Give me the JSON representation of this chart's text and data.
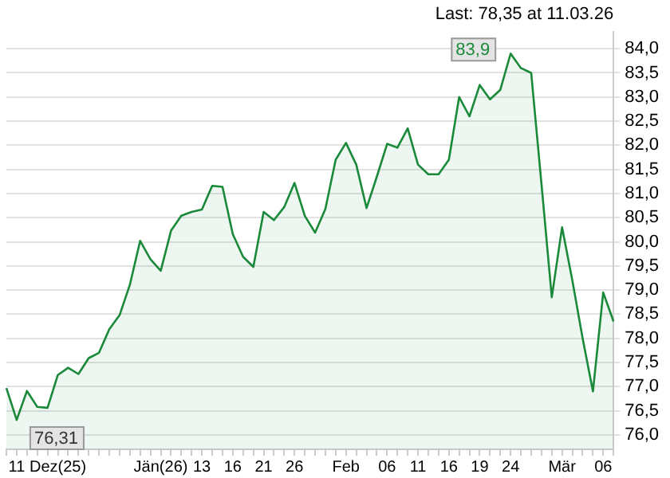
{
  "chart_data": {
    "type": "area",
    "categories": [
      null,
      "11",
      null,
      null,
      null,
      "Dez(25)",
      null,
      null,
      null,
      null,
      null,
      null,
      null,
      null,
      null,
      "Jän(26)",
      null,
      null,
      null,
      "13",
      null,
      null,
      "16",
      null,
      null,
      "21",
      null,
      null,
      "26",
      null,
      null,
      null,
      null,
      "Feb",
      null,
      null,
      null,
      "06",
      null,
      null,
      "11",
      null,
      null,
      "16",
      null,
      null,
      "19",
      null,
      null,
      "24",
      null,
      null,
      null,
      null,
      "Mär",
      null,
      null,
      null,
      "06",
      null
    ],
    "series": [
      {
        "color": "#1a8a3a",
        "values": [
          76.97,
          76.31,
          76.91,
          76.58,
          76.56,
          77.24,
          77.39,
          77.26,
          77.59,
          77.7,
          78.19,
          78.48,
          79.11,
          80.02,
          79.64,
          79.4,
          80.23,
          80.54,
          80.62,
          80.67,
          81.16,
          81.14,
          80.16,
          79.69,
          79.48,
          80.62,
          80.45,
          80.72,
          81.22,
          80.54,
          80.19,
          80.68,
          81.7,
          82.05,
          81.6,
          80.7,
          81.35,
          82.03,
          81.95,
          82.35,
          81.6,
          81.4,
          81.4,
          81.7,
          83.0,
          82.6,
          83.25,
          82.95,
          83.15,
          83.9,
          83.6,
          83.5,
          81.2,
          78.85,
          80.3,
          79.2,
          78.0,
          76.9,
          78.95,
          78.35
        ]
      }
    ],
    "ylim": [
      75.7,
      84.35
    ],
    "yticks": [
      {
        "value": 76,
        "label": "76,0"
      },
      {
        "value": 76.5,
        "label": "76,5"
      },
      {
        "value": 77,
        "label": "77,0"
      },
      {
        "value": 77.5,
        "label": "77,5"
      },
      {
        "value": 78,
        "label": "78,0"
      },
      {
        "value": 78.5,
        "label": "78,5"
      },
      {
        "value": 79,
        "label": "79,0"
      },
      {
        "value": 79.5,
        "label": "79,5"
      },
      {
        "value": 80,
        "label": "80,0"
      },
      {
        "value": 80.5,
        "label": "80,5"
      },
      {
        "value": 81,
        "label": "81,0"
      },
      {
        "value": 81.5,
        "label": "81,5"
      },
      {
        "value": 82,
        "label": "82,0"
      },
      {
        "value": 82.5,
        "label": "82,5"
      },
      {
        "value": 83,
        "label": "83,0"
      },
      {
        "value": 83.5,
        "label": "83,5"
      },
      {
        "value": 84,
        "label": "84,0"
      }
    ],
    "grid": "y",
    "marker": "none",
    "annotations": [
      "Last: 78,35 at 11.03.26",
      "83,9",
      "76,31"
    ]
  }
}
